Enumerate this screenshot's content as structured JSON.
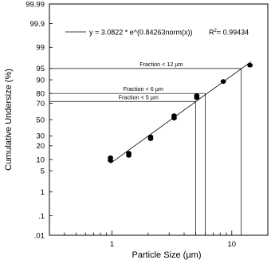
{
  "chart_data": {
    "type": "scatter",
    "title": "",
    "xlabel": "Particle Size (µm)",
    "ylabel": "Cumulative Undersize (%)",
    "x_scale": "log",
    "y_scale": "probability",
    "xlim": [
      0.3,
      20
    ],
    "ylim": [
      0.01,
      99.99
    ],
    "grid": false,
    "x_ticks": [
      1,
      10
    ],
    "x_tick_labels": [
      "1",
      "10"
    ],
    "y_ticks": [
      0.01,
      0.1,
      1,
      5,
      10,
      20,
      30,
      50,
      70,
      80,
      90,
      95,
      99,
      99.9,
      99.99
    ],
    "y_tick_labels": [
      ".01",
      ".1",
      "1",
      "5",
      "10",
      "20",
      "30",
      "50",
      "70",
      "80",
      "90",
      "95",
      "99",
      "99.9",
      "99.99"
    ],
    "series": [
      {
        "points": [
          {
            "x": 0.97,
            "y": 9.5
          },
          {
            "x": 0.97,
            "y": 11
          },
          {
            "x": 1.38,
            "y": 12.5
          },
          {
            "x": 1.38,
            "y": 14
          },
          {
            "x": 2.1,
            "y": 27
          },
          {
            "x": 2.1,
            "y": 29
          },
          {
            "x": 3.3,
            "y": 52
          },
          {
            "x": 3.3,
            "y": 55
          },
          {
            "x": 5.1,
            "y": 76
          },
          {
            "x": 5.1,
            "y": 78
          },
          {
            "x": 8.5,
            "y": 89
          },
          {
            "x": 14.2,
            "y": 96
          }
        ]
      }
    ],
    "fit_line": {
      "x_start": 0.97,
      "x_end": 14.5
    },
    "legend": {
      "placement": "top",
      "equation": "y = 3.0822 * e^(0.84263norm(x))",
      "r2_prefix": "R",
      "r2_sup": "2",
      "r2_value": "= 0.99434"
    },
    "annotations": [
      {
        "text": "Fraction < 12 µm",
        "x": 12,
        "y": 95
      },
      {
        "text": "Fraction < 6 µm",
        "x": 6,
        "y": 80
      },
      {
        "text": "Fraction < 5 µm",
        "x": 5,
        "y": 72
      }
    ]
  }
}
